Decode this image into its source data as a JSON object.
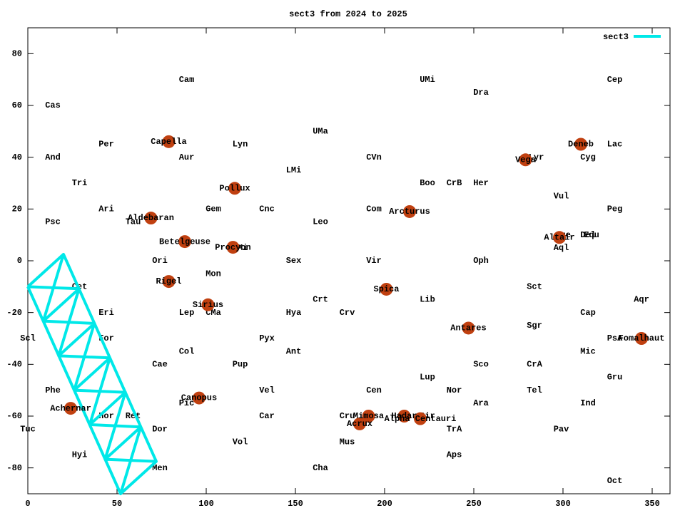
{
  "chart_data": {
    "type": "line",
    "title": "sect3 from 2024 to 2025",
    "xlim": [
      0,
      360
    ],
    "ylim": [
      -90,
      90
    ],
    "xticks": [
      0,
      50,
      100,
      150,
      200,
      250,
      300,
      350
    ],
    "yticks": [
      -80,
      -60,
      -40,
      -20,
      0,
      20,
      40,
      60,
      80
    ],
    "legend": "upper right",
    "series": [
      {
        "name": "sect3",
        "color": "#00e8e8",
        "x": [
          0,
          52,
          72,
          20,
          0,
          null,
          0,
          28.7,
          17.3,
          46,
          34.7,
          63.3,
          52,
          null,
          20,
          8.7,
          37.3,
          26,
          54.7,
          43.3,
          72,
          null,
          8.7,
          28.7,
          null,
          17.3,
          37.3,
          null,
          26,
          46,
          null,
          34.7,
          54.7,
          null,
          43.3,
          63.3
        ],
        "y": [
          -10,
          -90,
          -77.5,
          2.5,
          -10,
          null,
          -10,
          -10.8,
          -36.7,
          -37.5,
          -63.3,
          -64.2,
          -90,
          null,
          2.5,
          -23.3,
          -24.2,
          -50,
          -50.8,
          -76.7,
          -77.5,
          null,
          -23.3,
          -10.8,
          null,
          -36.7,
          -24.2,
          null,
          -50,
          -37.5,
          null,
          -63.3,
          -50.8,
          null,
          -76.7,
          -64.2
        ]
      }
    ],
    "constellations": {
      "name": [
        "Cam",
        "UMi",
        "Cep",
        "Dra",
        "Cas",
        "UMa",
        "Per",
        "Lyn",
        "Lac",
        "And",
        "Aur",
        "CVn",
        "Cyg",
        "Lyr",
        "LMi",
        "Tri",
        "Boo",
        "CrB",
        "Her",
        "Vul",
        "Ari",
        "Gem",
        "Cnc",
        "Com",
        "Peg",
        "Psc",
        "Tau",
        "Leo",
        "Sge",
        "Del",
        "Equ",
        "Aql",
        "CMi",
        "Ori",
        "Sex",
        "Vir",
        "Oph",
        "Mon",
        "Cet",
        "Sct",
        "Crt",
        "Lib",
        "Aqr",
        "Eri",
        "Lep",
        "CMa",
        "Hya",
        "Crv",
        "Cap",
        "Sgr",
        "Scl",
        "For",
        "Pyx",
        "PsA",
        "Col",
        "Ant",
        "Mic",
        "Cae",
        "Pup",
        "Sco",
        "CrA",
        "Lup",
        "Gru",
        "Phe",
        "Vel",
        "Cen",
        "Nor",
        "Tel",
        "Pic",
        "Ara",
        "Ind",
        "Hor",
        "Ret",
        "Car",
        "Cru",
        "Cir",
        "Tuc",
        "Dor",
        "TrA",
        "Pav",
        "Vol",
        "Mus",
        "Hyi",
        "Aps",
        "Men",
        "Cha",
        "Oct"
      ],
      "x": [
        89,
        224,
        329,
        254,
        14,
        164,
        44,
        119,
        329,
        14,
        89,
        194,
        314,
        285,
        149,
        29,
        224,
        239,
        254,
        299,
        44,
        104,
        134,
        194,
        329,
        14,
        59,
        164,
        300,
        314,
        316,
        299,
        119,
        74,
        149,
        194,
        254,
        104,
        29,
        284,
        164,
        224,
        344,
        44,
        89,
        104,
        149,
        179,
        314,
        284,
        0,
        44,
        134,
        329,
        89,
        149,
        314,
        74,
        119,
        254,
        284,
        224,
        329,
        14,
        134,
        194,
        239,
        284,
        89,
        254,
        314,
        44,
        59,
        134,
        179,
        224,
        0,
        74,
        239,
        299,
        119,
        179,
        29,
        239,
        74,
        164,
        329
      ],
      "y": [
        70,
        70,
        70,
        65,
        60,
        50,
        45,
        45,
        45,
        40,
        40,
        40,
        40,
        40,
        35,
        30,
        30,
        30,
        30,
        25,
        20,
        20,
        20,
        20,
        20,
        15,
        15,
        15,
        10,
        10,
        10,
        5,
        5,
        0,
        0,
        0,
        0,
        -5,
        -10,
        -10,
        -15,
        -15,
        -15,
        -20,
        -20,
        -20,
        -20,
        -20,
        -20,
        -25,
        -30,
        -30,
        -30,
        -30,
        -35,
        -35,
        -35,
        -40,
        -40,
        -40,
        -40,
        -45,
        -45,
        -50,
        -50,
        -50,
        -50,
        -50,
        -55,
        -55,
        -55,
        -60,
        -60,
        -60,
        -60,
        -60,
        -65,
        -65,
        -65,
        -65,
        -70,
        -70,
        -75,
        -75,
        -80,
        -80,
        -85
      ]
    },
    "stars": {
      "color": "#c04010",
      "name": [
        "Capella",
        "Deneb",
        "Vega",
        "Pollux",
        "Arcturus",
        "Aldebaran",
        "Betelgeuse",
        "Altair",
        "Procyon",
        "Rigel",
        "Spica",
        "Sirius",
        "Antares",
        "Fomalhaut",
        "Canopus",
        "Achernar",
        "Mimosa",
        "Hadar",
        "Alpha Centauri",
        "Acrux"
      ],
      "x": [
        79,
        310,
        279,
        116,
        214,
        69,
        88,
        298,
        115,
        79,
        201,
        101,
        247,
        344,
        96,
        24,
        191,
        211,
        220,
        186
      ],
      "y": [
        46,
        45,
        39,
        28,
        19,
        16.5,
        7.4,
        9,
        5.2,
        -8,
        -11,
        -17,
        -26,
        -30,
        -53,
        -57,
        -60,
        -60,
        -61,
        -63
      ]
    }
  }
}
